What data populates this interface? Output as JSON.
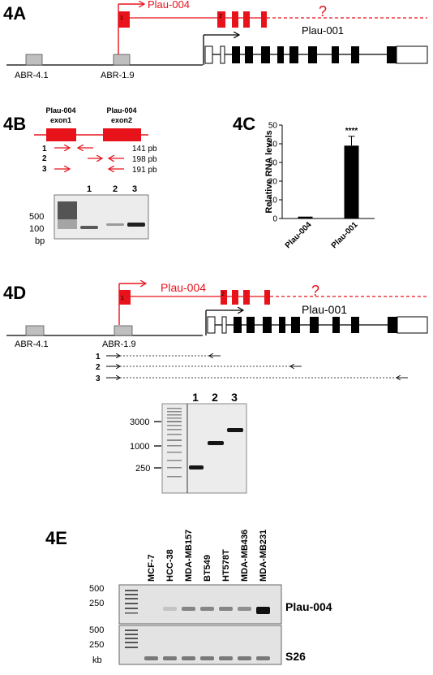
{
  "panels": {
    "a": {
      "label": "4A",
      "transcript_red": "Plau-004",
      "transcript_black": "Plau-001",
      "question": "?",
      "abr_left": "ABR-4.1",
      "abr_right": "ABR-1.9",
      "exon1": "1",
      "exon2": "2"
    },
    "b": {
      "label": "4B",
      "exon1": "Plau-004\nexon1",
      "exon1_l1": "Plau-004",
      "exon1_l2": "exon1",
      "exon2_l1": "Plau-004",
      "exon2_l2": "exon2",
      "primers": [
        {
          "n": "1",
          "size": "141 pb"
        },
        {
          "n": "2",
          "size": "198 pb"
        },
        {
          "n": "3",
          "size": "191 pb"
        }
      ],
      "ladder": [
        "500",
        "100",
        "bp"
      ],
      "lanes": [
        "1",
        "2",
        "3"
      ]
    },
    "c": {
      "label": "4C"
    },
    "d": {
      "label": "4D",
      "transcript_red": "Plau-004",
      "transcript_black": "Plau-001",
      "question": "?",
      "abr_left": "ABR-4.1",
      "abr_right": "ABR-1.9",
      "exon1": "1",
      "exon2": "2",
      "amplicons": [
        "1",
        "2",
        "3"
      ],
      "ladder": [
        "3000",
        "1000",
        "250"
      ],
      "lanes": [
        "1",
        "2",
        "3"
      ]
    },
    "e": {
      "label": "4E",
      "cell_lines": [
        "MCF-7",
        "HCC-38",
        "MDA-MB157",
        "BT549",
        "HT578T",
        "MDA-MB436",
        "MDA-MB231"
      ],
      "ladder_top": [
        "500",
        "250"
      ],
      "ladder_bottom": [
        "500",
        "250",
        "kb"
      ],
      "gene_top": "Plau-004",
      "gene_bottom": "S26"
    }
  },
  "colors": {
    "accent": "#e8121b",
    "gel": "#efefef"
  },
  "chart_data": {
    "type": "bar",
    "categories": [
      "Plau-004",
      "Plau-001"
    ],
    "values": [
      1,
      39
    ],
    "errors": [
      0,
      5
    ],
    "significance": [
      "",
      "****"
    ],
    "title": "",
    "xlabel": "",
    "ylabel": "Relative RNA levels",
    "ylim": [
      0,
      50
    ],
    "yticks": [
      0,
      10,
      20,
      30,
      40,
      50
    ],
    "grid": false
  }
}
